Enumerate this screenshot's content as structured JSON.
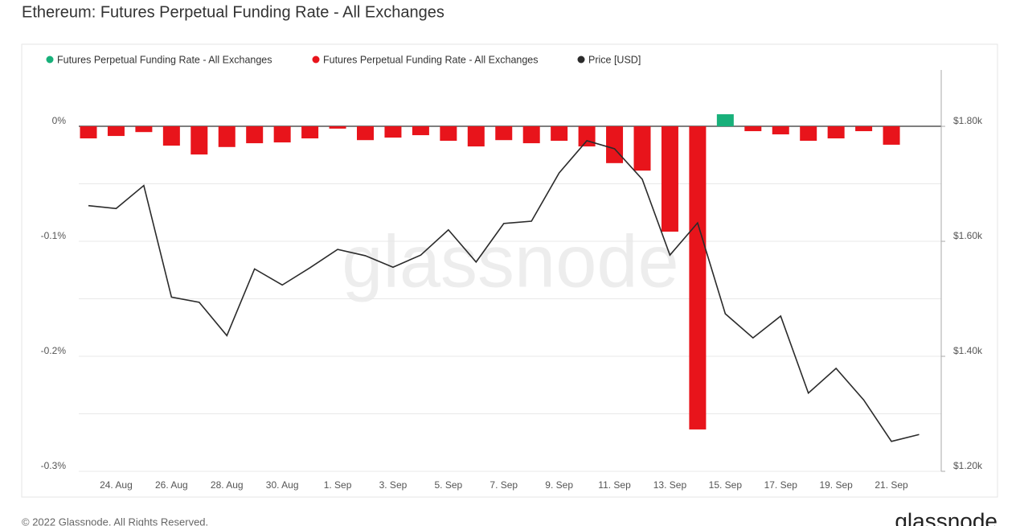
{
  "chart_data": {
    "type": "bar",
    "title": "Ethereum: Futures Perpetual Funding Rate - All Exchanges",
    "watermark": "glassnode",
    "footer": "© 2022 Glassnode. All Rights Reserved.",
    "logo": "glassnode",
    "categories": [
      null,
      "24. Aug",
      null,
      "26. Aug",
      null,
      "28. Aug",
      null,
      "30. Aug",
      null,
      "1. Sep",
      null,
      "3. Sep",
      null,
      "5. Sep",
      null,
      "7. Sep",
      null,
      "9. Sep",
      null,
      "11. Sep",
      null,
      "13. Sep",
      null,
      "15. Sep",
      null,
      "17. Sep",
      null,
      "19. Sep",
      null,
      "21. Sep",
      null
    ],
    "series": [
      {
        "name": "Futures Perpetual Funding Rate - All Exchanges",
        "color": "#18b07a",
        "type": "bar",
        "axis": "y",
        "values": [
          null,
          null,
          null,
          null,
          null,
          null,
          null,
          null,
          null,
          null,
          null,
          null,
          null,
          null,
          null,
          null,
          null,
          null,
          null,
          null,
          null,
          null,
          null,
          0.0105,
          null,
          null,
          null,
          null,
          null,
          null,
          null
        ]
      },
      {
        "name": "Futures Perpetual Funding Rate - All Exchanges",
        "color": "#e8141b",
        "type": "bar",
        "axis": "y",
        "values": [
          -0.0105,
          -0.0084,
          -0.005,
          -0.0168,
          -0.0245,
          -0.018,
          -0.0147,
          -0.014,
          -0.0105,
          -0.002,
          -0.012,
          -0.0098,
          -0.0077,
          -0.0126,
          -0.0175,
          -0.012,
          -0.0147,
          -0.0126,
          -0.0175,
          -0.032,
          -0.0385,
          -0.0916,
          -0.2636,
          null,
          -0.0042,
          -0.007,
          -0.0126,
          -0.0105,
          -0.0042,
          -0.016,
          null
        ]
      },
      {
        "name": "Price [USD]",
        "color": "#2b2b2b",
        "type": "line",
        "axis": "y2",
        "values": [
          1662,
          1657,
          1697,
          1503,
          1494,
          1436,
          1552,
          1524,
          1554,
          1586,
          1575,
          1555,
          1576,
          1620,
          1564,
          1631,
          1635,
          1719,
          1775,
          1761,
          1708,
          1576,
          1632,
          1474,
          1432,
          1470,
          1336,
          1379,
          1324,
          1252,
          1264
        ]
      }
    ],
    "ylim": [
      -0.3,
      0.049
    ],
    "yticks": [
      {
        "value": 0,
        "label": "0%"
      },
      {
        "value": -0.1,
        "label": "-0.1%"
      },
      {
        "value": -0.2,
        "label": "-0.2%"
      },
      {
        "value": -0.3,
        "label": "-0.3%"
      }
    ],
    "yminor": [
      -0.05,
      -0.15,
      -0.25
    ],
    "y2lim": [
      1200,
      1898
    ],
    "y2ticks": [
      {
        "value": 1800,
        "label": "$1.80k"
      },
      {
        "value": 1600,
        "label": "$1.60k"
      },
      {
        "value": 1400,
        "label": "$1.40k"
      },
      {
        "value": 1200,
        "label": "$1.20k"
      }
    ],
    "grid": true,
    "legend": "top-left"
  }
}
